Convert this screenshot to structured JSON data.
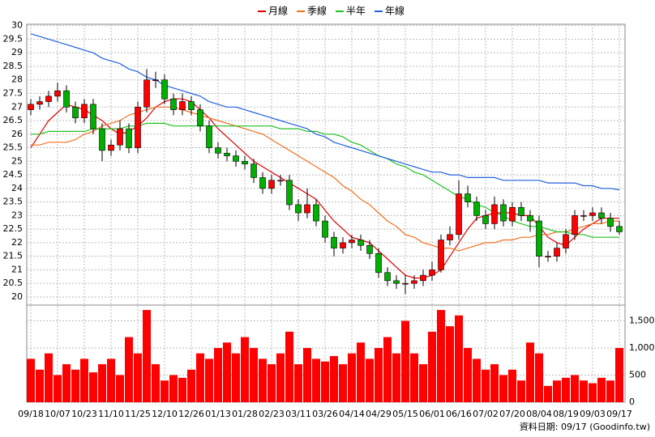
{
  "chart_data": {
    "type": "candlestick",
    "source": "資料日期: 09/17 (Goodinfo.tw)",
    "grid": true,
    "ylim": [
      19.7,
      30.05
    ],
    "yticks": [
      20,
      20.5,
      21,
      21.5,
      22,
      22.5,
      23,
      23.5,
      24,
      24.5,
      25,
      25.5,
      26,
      26.5,
      27,
      27.5,
      28,
      28.5,
      29,
      29.5,
      30
    ],
    "up_color": "#ff0000",
    "down_color": "#00b000",
    "categories": [
      "09/18",
      null,
      null,
      "10/07",
      null,
      null,
      "10/23",
      null,
      null,
      "11/10",
      null,
      null,
      "11/25",
      null,
      null,
      "12/10",
      null,
      null,
      "12/26",
      null,
      null,
      "01/13",
      null,
      null,
      "01/28",
      null,
      null,
      "02/23",
      null,
      null,
      "03/11",
      null,
      null,
      "03/26",
      null,
      null,
      "04/14",
      null,
      null,
      "04/29",
      null,
      null,
      "05/15",
      null,
      null,
      "06/01",
      null,
      null,
      "06/16",
      null,
      null,
      "07/02",
      null,
      null,
      "07/20",
      null,
      null,
      "08/04",
      null,
      null,
      "08/19",
      null,
      null,
      "09/03",
      null,
      null,
      "09/17"
    ],
    "candles": {
      "open": [
        26.9,
        27.1,
        27.2,
        27.4,
        27.6,
        27.0,
        26.6,
        27.1,
        26.2,
        25.4,
        25.6,
        26.2,
        25.5,
        27.0,
        28.0,
        28.0,
        27.3,
        26.9,
        27.2,
        26.9,
        26.3,
        25.5,
        25.3,
        25.2,
        25.0,
        24.9,
        24.4,
        24.0,
        24.3,
        24.3,
        23.4,
        23.1,
        23.4,
        22.8,
        22.2,
        21.8,
        22.0,
        22.1,
        21.9,
        21.6,
        20.9,
        20.6,
        20.5,
        20.5,
        20.6,
        20.8,
        21.0,
        22.1,
        22.3,
        23.8,
        23.5,
        23.0,
        22.7,
        23.4,
        22.8,
        23.3,
        23.0,
        22.8,
        21.5,
        21.5,
        21.8,
        22.3,
        23.0,
        23.0,
        23.1,
        22.9,
        22.6
      ],
      "high": [
        27.3,
        27.4,
        27.6,
        27.9,
        27.8,
        27.2,
        27.3,
        27.3,
        26.4,
        25.8,
        26.5,
        26.4,
        27.2,
        28.4,
        28.3,
        28.2,
        27.5,
        27.5,
        27.4,
        27.1,
        26.5,
        25.7,
        25.5,
        25.4,
        25.2,
        25.1,
        24.6,
        24.5,
        24.5,
        24.5,
        23.6,
        24.0,
        23.6,
        23.0,
        22.4,
        22.2,
        22.3,
        22.3,
        22.1,
        21.8,
        21.1,
        20.8,
        20.8,
        20.8,
        21.0,
        21.3,
        22.3,
        22.6,
        24.3,
        24.1,
        23.7,
        23.2,
        23.7,
        23.6,
        23.5,
        23.5,
        23.2,
        23.0,
        21.7,
        22.0,
        22.5,
        23.2,
        23.2,
        23.3,
        23.3,
        23.1,
        22.8
      ],
      "low": [
        26.7,
        26.9,
        27.0,
        27.2,
        26.8,
        26.4,
        26.4,
        26.0,
        25.0,
        25.2,
        25.4,
        25.3,
        25.3,
        26.8,
        27.7,
        27.1,
        26.7,
        26.7,
        26.7,
        26.1,
        25.3,
        25.1,
        25.0,
        24.8,
        24.7,
        24.2,
        23.8,
        23.8,
        24.1,
        23.2,
        22.8,
        22.9,
        22.6,
        22.0,
        21.5,
        21.6,
        21.8,
        21.7,
        21.4,
        20.7,
        20.4,
        20.3,
        20.1,
        20.3,
        20.4,
        20.6,
        20.9,
        21.9,
        22.1,
        23.3,
        22.8,
        22.5,
        22.5,
        22.6,
        22.6,
        22.8,
        22.4,
        21.1,
        21.3,
        21.3,
        21.6,
        22.1,
        22.8,
        22.8,
        22.7,
        22.4,
        22.3
      ],
      "close": [
        27.1,
        27.2,
        27.4,
        27.6,
        27.0,
        26.6,
        27.1,
        26.2,
        25.4,
        25.6,
        26.2,
        25.5,
        27.0,
        28.0,
        28.0,
        27.3,
        26.9,
        27.2,
        26.9,
        26.3,
        25.5,
        25.3,
        25.2,
        25.0,
        24.9,
        24.4,
        24.0,
        24.3,
        24.3,
        23.4,
        23.1,
        23.4,
        22.8,
        22.2,
        21.8,
        22.0,
        22.1,
        21.9,
        21.6,
        20.9,
        20.6,
        20.5,
        20.5,
        20.6,
        20.8,
        21.0,
        22.1,
        22.3,
        23.8,
        23.5,
        23.0,
        22.7,
        23.4,
        22.8,
        23.3,
        23.0,
        22.8,
        21.5,
        21.5,
        21.8,
        22.3,
        23.0,
        23.0,
        23.1,
        22.9,
        22.6,
        22.4
      ]
    },
    "series": [
      {
        "name": "月線",
        "color": "#e00000",
        "values": [
          25.5,
          26.0,
          26.5,
          26.8,
          27.1,
          27.0,
          26.9,
          26.7,
          26.5,
          26.2,
          26.0,
          26.1,
          26.3,
          26.6,
          27.0,
          27.2,
          27.3,
          27.3,
          27.2,
          26.9,
          26.6,
          26.2,
          25.9,
          25.6,
          25.3,
          25.0,
          24.8,
          24.6,
          24.4,
          24.2,
          24.0,
          23.8,
          23.6,
          23.2,
          22.8,
          22.5,
          22.2,
          22.1,
          22.0,
          21.7,
          21.4,
          21.1,
          20.8,
          20.7,
          20.7,
          20.8,
          21.0,
          21.5,
          22.0,
          22.5,
          22.9,
          23.0,
          23.1,
          23.1,
          23.1,
          23.0,
          23.0,
          22.6,
          22.2,
          22.0,
          21.9,
          22.2,
          22.5,
          22.7,
          22.9,
          22.9,
          22.9
        ]
      },
      {
        "name": "季線",
        "color": "#f07020",
        "values": [
          25.6,
          25.6,
          25.7,
          25.7,
          25.7,
          25.8,
          26.0,
          26.1,
          26.3,
          26.4,
          26.5,
          26.7,
          26.8,
          26.9,
          27.0,
          27.0,
          27.0,
          26.9,
          26.8,
          26.7,
          26.6,
          26.5,
          26.4,
          26.3,
          26.2,
          26.1,
          26.0,
          25.8,
          25.6,
          25.4,
          25.2,
          25.0,
          24.8,
          24.6,
          24.4,
          24.1,
          23.9,
          23.6,
          23.4,
          23.1,
          22.8,
          22.6,
          22.3,
          22.2,
          22.0,
          21.9,
          21.8,
          21.8,
          21.7,
          21.8,
          21.9,
          22.0,
          22.0,
          22.1,
          22.1,
          22.2,
          22.2,
          22.3,
          22.3,
          22.4,
          22.4,
          22.5,
          22.6,
          22.7,
          22.7,
          22.8,
          22.8
        ]
      },
      {
        "name": "半年",
        "color": "#20c020",
        "values": [
          26.0,
          26.0,
          26.1,
          26.1,
          26.1,
          26.1,
          26.1,
          26.2,
          26.2,
          26.2,
          26.2,
          26.3,
          26.3,
          26.4,
          26.4,
          26.4,
          26.3,
          26.3,
          26.3,
          26.3,
          26.3,
          26.3,
          26.3,
          26.3,
          26.3,
          26.3,
          26.3,
          26.3,
          26.2,
          26.2,
          26.2,
          26.1,
          26.1,
          26.0,
          26.0,
          25.9,
          25.7,
          25.6,
          25.4,
          25.2,
          25.1,
          24.9,
          24.8,
          24.6,
          24.5,
          24.3,
          24.1,
          23.9,
          23.7,
          23.6,
          23.4,
          23.3,
          23.1,
          23.0,
          22.8,
          22.7,
          22.6,
          22.6,
          22.5,
          22.4,
          22.4,
          22.3,
          22.3,
          22.2,
          22.2,
          22.2,
          22.2
        ]
      },
      {
        "name": "年線",
        "color": "#2060e0",
        "values": [
          29.7,
          29.6,
          29.5,
          29.4,
          29.3,
          29.2,
          29.1,
          29.0,
          28.8,
          28.7,
          28.6,
          28.4,
          28.3,
          28.1,
          28.0,
          27.8,
          27.7,
          27.6,
          27.5,
          27.4,
          27.2,
          27.1,
          27.0,
          27.0,
          26.9,
          26.8,
          26.7,
          26.6,
          26.5,
          26.4,
          26.3,
          26.2,
          26.0,
          25.9,
          25.7,
          25.6,
          25.5,
          25.4,
          25.3,
          25.2,
          25.1,
          25.0,
          24.9,
          24.8,
          24.7,
          24.6,
          24.6,
          24.5,
          24.5,
          24.4,
          24.4,
          24.4,
          24.4,
          24.3,
          24.3,
          24.3,
          24.3,
          24.3,
          24.2,
          24.2,
          24.2,
          24.2,
          24.1,
          24.1,
          24.0,
          24.0,
          23.95
        ]
      }
    ],
    "volume": {
      "color": "#ff0000",
      "ylim": [
        0,
        1790
      ],
      "yticks": [
        0,
        500,
        {
          "value": 1000,
          "label": "1,000"
        },
        {
          "value": 1500,
          "label": "1,500"
        }
      ],
      "values": [
        800,
        600,
        900,
        500,
        700,
        600,
        800,
        550,
        700,
        800,
        500,
        1200,
        900,
        1700,
        700,
        400,
        500,
        450,
        600,
        900,
        800,
        1000,
        1100,
        900,
        1200,
        1000,
        800,
        700,
        900,
        1300,
        700,
        1000,
        800,
        750,
        850,
        700,
        900,
        1100,
        800,
        1000,
        1200,
        900,
        1500,
        900,
        700,
        1300,
        1700,
        1400,
        1600,
        1000,
        800,
        600,
        700,
        500,
        600,
        400,
        1100,
        900,
        300,
        400,
        450,
        500,
        400,
        350,
        450,
        400,
        1000
      ]
    }
  }
}
